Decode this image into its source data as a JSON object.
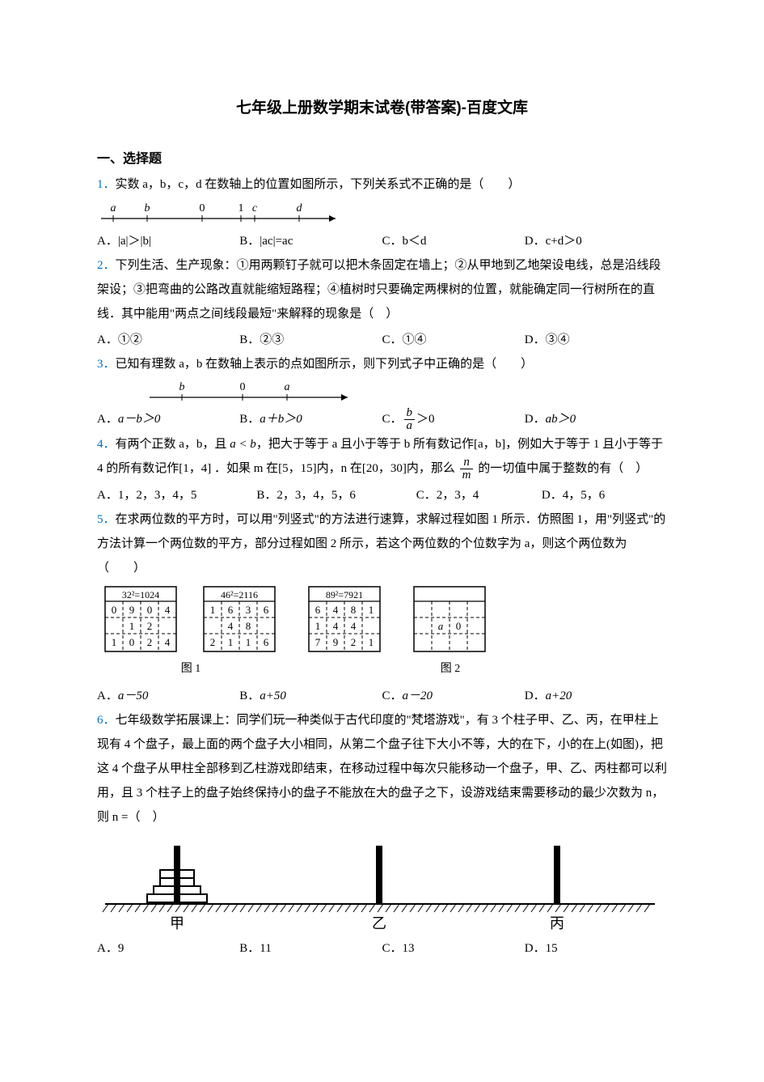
{
  "page": {
    "title": "七年级上册数学期末试卷(带答案)-百度文库",
    "section_heading": "一、选择题"
  },
  "q1": {
    "num": "1．",
    "text_a": "实数 a，b，c，d 在数轴上的位置如图所示，下列关系式不正确的是（　　）",
    "opts": {
      "A": "A．|a|＞|b|",
      "B": "B．|ac|=ac",
      "C": "C．b＜d",
      "D": "D．c+d＞0"
    },
    "numberline": {
      "labels": [
        "a",
        "b",
        "0",
        "1",
        "c",
        "d"
      ],
      "positions": [
        20,
        62,
        130,
        178,
        195,
        250
      ],
      "ticks": [
        20,
        62,
        130,
        178,
        195,
        250
      ],
      "arrow_end": 300
    }
  },
  "q2": {
    "num": "2．",
    "text": "下列生活、生产现象：①用两颗钉子就可以把木条固定在墙上；②从甲地到乙地架设电线，总是沿线段架设；③把弯曲的公路改直就能缩短路程；④植树时只要确定两棵树的位置，就能确定同一行树所在的直线．其中能用\"两点之间线段最短\"来解释的现象是（　）",
    "opts": {
      "A": "A．①②",
      "B": "B．②③",
      "C": "C．①④",
      "D": "D．③④"
    }
  },
  "q3": {
    "num": "3．",
    "text": "已知有理数 a，b 在数轴上表示的点如图所示，则下列式子中正确的是（　　）",
    "opts_prefix": {
      "A": "A．",
      "B": "B．",
      "C": "C．",
      "D": "D．"
    },
    "opts_body": {
      "A": "a－b＞0",
      "B": "a＋b＞0",
      "C_gt": "＞0",
      "D": "ab＞0"
    },
    "numberline": {
      "labels": [
        "b",
        "0",
        "a"
      ],
      "positions": [
        45,
        120,
        175
      ],
      "ticks": [
        45,
        120,
        175
      ],
      "arrow_end": 255
    }
  },
  "q4": {
    "num": "4．",
    "text_a": "有两个正数 a，b，且 ",
    "text_b": "，把大于等于 a 且小于等于 b 所有数记作[a，b]，例如大于等于 1 且小于等于 4 的所有数记作[1，4] ．如果 m 在[5，15]内，n 在[20，30]内，那么 ",
    "text_c": " 的一切值中属于整数的有（　）",
    "ineq": "a < b",
    "opts": {
      "A": "A．1，2，3，4，5",
      "B": "B．2，3，4，5，6",
      "C": "C．2，3，4",
      "D": "D．4，5，6"
    }
  },
  "q5": {
    "num": "5．",
    "text": "在求两位数的平方时，可以用\"列竖式\"的方法进行速算，求解过程如图 1 所示．仿照图 1，用\"列竖式\"的方法计算一个两位数的平方，部分过程如图 2 所示，若这个两位数的个位数字为 a，则这个两位数为（　　）",
    "opts_prefix": {
      "A": "A．",
      "B": "B．",
      "C": "C．",
      "D": "D．"
    },
    "opts_body": {
      "A": "a－50",
      "B": "a+50",
      "C": "a－20",
      "D": "a+20"
    },
    "tables": {
      "t1": {
        "header": "32²=1024",
        "rows": [
          [
            "0",
            "9",
            "0",
            "4"
          ],
          [
            "",
            "1",
            "2",
            ""
          ],
          [
            "1",
            "0",
            "2",
            "4"
          ]
        ]
      },
      "t2": {
        "header": "46²=2116",
        "rows": [
          [
            "1",
            "6",
            "3",
            "6"
          ],
          [
            "",
            "4",
            "8",
            ""
          ],
          [
            "2",
            "1",
            "1",
            "6"
          ]
        ]
      },
      "t3": {
        "header": "89²=7921",
        "rows": [
          [
            "6",
            "4",
            "8",
            "1"
          ],
          [
            "1",
            "4",
            "4",
            ""
          ],
          [
            "7",
            "9",
            "2",
            "1"
          ]
        ]
      },
      "t4": {
        "header": "",
        "rows": [
          [
            "",
            "",
            "",
            ""
          ],
          [
            "",
            "a",
            "0",
            ""
          ],
          [
            "",
            "",
            "",
            ""
          ]
        ]
      }
    },
    "captions": {
      "fig1": "图 1",
      "fig2": "图 2"
    }
  },
  "q6": {
    "num": "6．",
    "text": "七年级数学拓展课上：同学们玩一种类似于古代印度的\"梵塔游戏\"，有 3 个柱子甲、乙、丙，在甲柱上现有 4 个盘子，最上面的两个盘子大小相同，从第二个盘子往下大小不等，大的在下，小的在上(如图)，把这 4 个盘子从甲柱全部移到乙柱游戏即结束，在移动过程中每次只能移动一个盘子，甲、乙、丙柱都可以利用，且 3 个柱子上的盘子始终保持小的盘子不能放在大的盘子之下，设游戏结束需要移动的最少次数为 n，则 n =（　）",
    "opts": {
      "A": "A．9",
      "B": "B．11",
      "C": "C．13",
      "D": "D．15"
    },
    "labels": {
      "jia": "甲",
      "yi": "乙",
      "bing": "丙"
    }
  },
  "style": {
    "qnum_color": "#0070c0",
    "text_color": "#000000"
  }
}
